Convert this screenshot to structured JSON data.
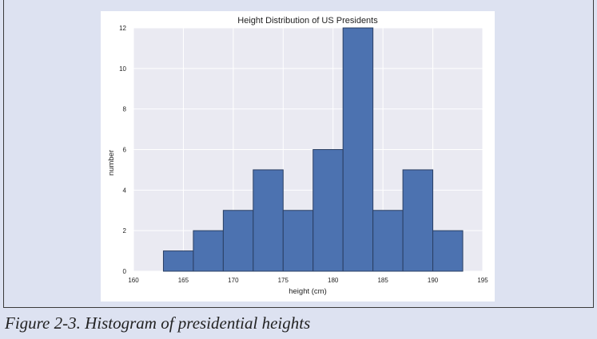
{
  "caption": "Figure 2-3. Histogram of presidential heights",
  "colors": {
    "bar_fill": "#4c72b0",
    "bar_edge": "#2a3f63",
    "plot_background": "#eaeaf2",
    "grid": "#ffffff",
    "page_background": "#dde2f1"
  },
  "chart_data": {
    "type": "bar",
    "title": "Height Distribution of US Presidents",
    "xlabel": "height (cm)",
    "ylabel": "number",
    "xlim": [
      160,
      195
    ],
    "ylim": [
      0,
      12
    ],
    "xticks": [
      160,
      165,
      170,
      175,
      180,
      185,
      190,
      195
    ],
    "yticks": [
      0,
      2,
      4,
      6,
      8,
      10,
      12
    ],
    "grid": true,
    "bins": [
      {
        "x0": 163,
        "x1": 166,
        "count": 1
      },
      {
        "x0": 166,
        "x1": 169,
        "count": 2
      },
      {
        "x0": 169,
        "x1": 172,
        "count": 3
      },
      {
        "x0": 172,
        "x1": 175,
        "count": 5
      },
      {
        "x0": 175,
        "x1": 178,
        "count": 3
      },
      {
        "x0": 178,
        "x1": 181,
        "count": 6
      },
      {
        "x0": 181,
        "x1": 184,
        "count": 12
      },
      {
        "x0": 184,
        "x1": 187,
        "count": 3
      },
      {
        "x0": 187,
        "x1": 190,
        "count": 5
      },
      {
        "x0": 190,
        "x1": 193,
        "count": 2
      }
    ]
  }
}
